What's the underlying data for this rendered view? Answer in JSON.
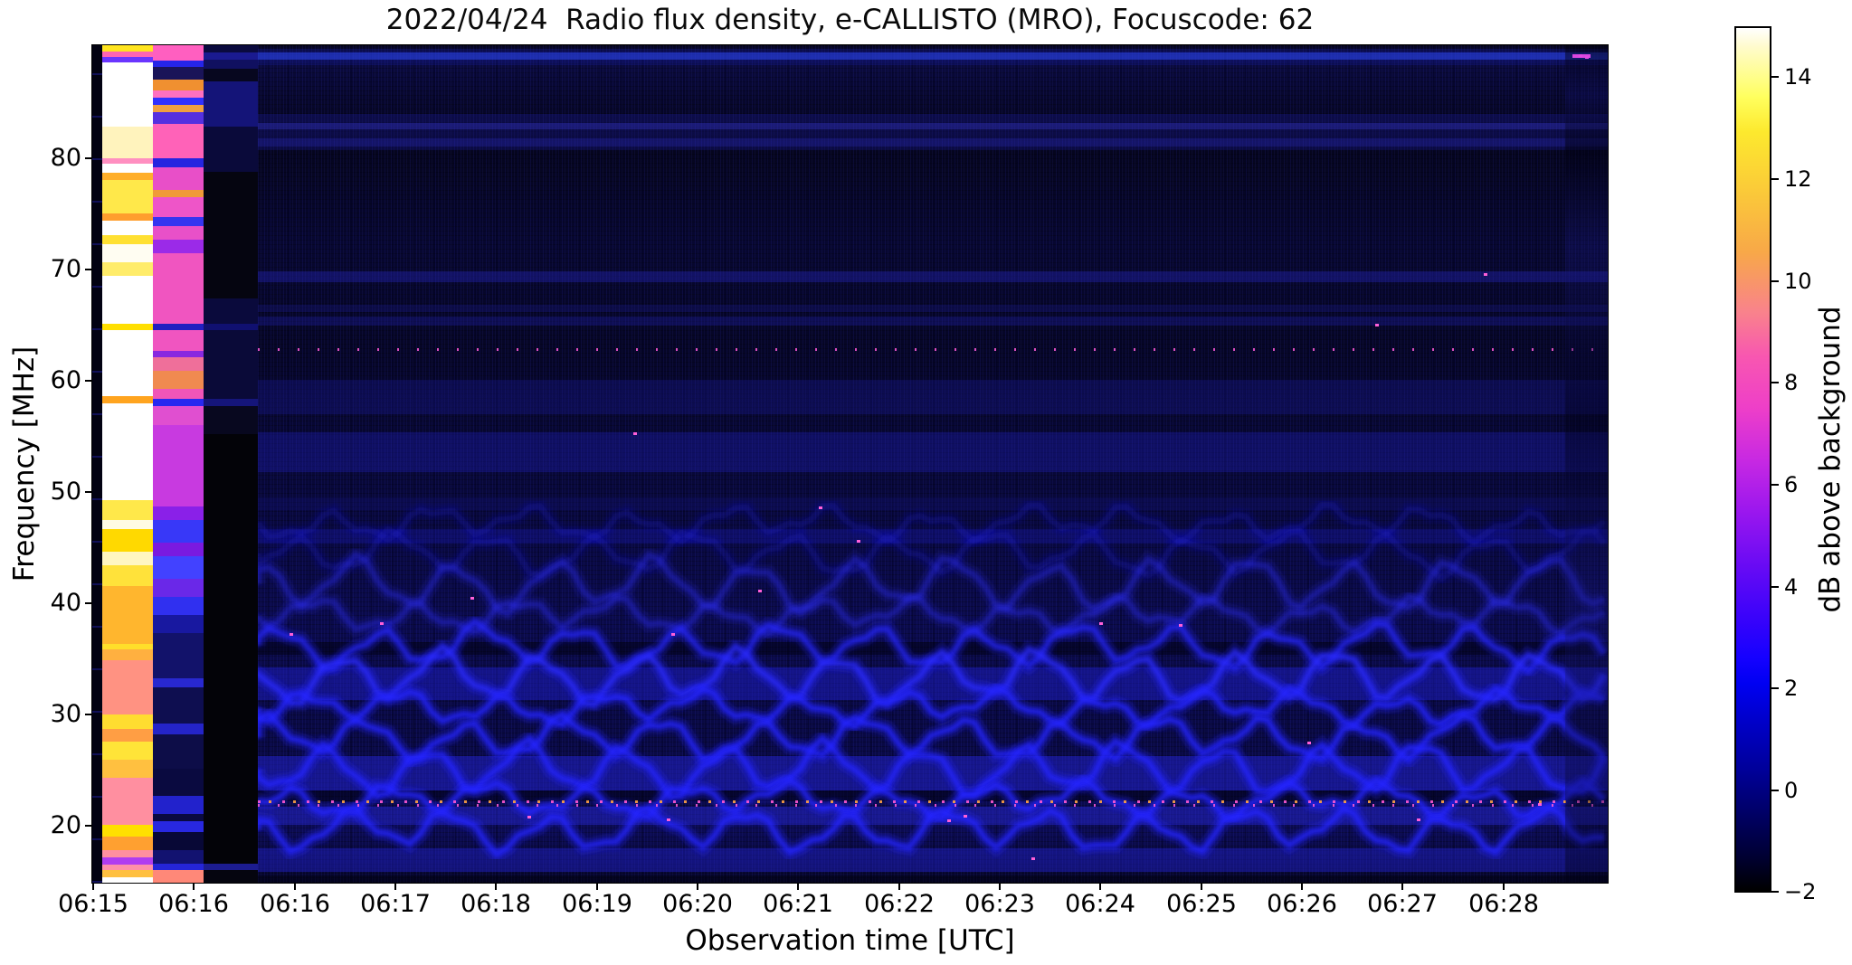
{
  "title": "2022/04/24  Radio flux density, e-CALLISTO (MRO), Focuscode: 62",
  "axes": {
    "x": {
      "label": "Observation time [UTC]",
      "ticks": [
        "06:15",
        "06:16",
        "06:16",
        "06:17",
        "06:18",
        "06:19",
        "06:20",
        "06:21",
        "06:22",
        "06:23",
        "06:24",
        "06:25",
        "06:26",
        "06:27",
        "06:28"
      ]
    },
    "y": {
      "label": "Frequency [MHz]",
      "ticks": [
        "80",
        "70",
        "60",
        "50",
        "40",
        "30",
        "20"
      ]
    },
    "colorbar": {
      "label": "dB above background",
      "ticks": [
        "14",
        "12",
        "10",
        "8",
        "6",
        "4",
        "2",
        "0",
        "−2"
      ]
    }
  },
  "colors": {
    "figure_background": "#ffffff",
    "text": "#000000",
    "wave_blue": "#2626ff",
    "rfi_pink": "#ff5ad8",
    "colormap_top": "#ffffff",
    "colormap_bottom": "#000000"
  },
  "chart_data": {
    "type": "heatmap",
    "title": "2022/04/24  Radio flux density, e-CALLISTO (MRO), Focuscode: 62",
    "xlabel": "Observation time [UTC]",
    "ylabel": "Frequency [MHz]",
    "colorbar_label": "dB above background",
    "x_tick_labels": [
      "06:15",
      "06:16",
      "06:16",
      "06:17",
      "06:18",
      "06:19",
      "06:20",
      "06:21",
      "06:22",
      "06:23",
      "06:24",
      "06:25",
      "06:26",
      "06:27",
      "06:28"
    ],
    "y_tick_values_mhz": [
      80,
      70,
      60,
      50,
      40,
      30,
      20
    ],
    "y_range_mhz": [
      15,
      90
    ],
    "x_range_utc": [
      "06:15",
      "06:29"
    ],
    "colorbar_tick_values": [
      14,
      12,
      10,
      8,
      6,
      4,
      2,
      0,
      -2
    ],
    "colorbar_range_db": [
      -2,
      15
    ],
    "colormap": "gnuplot2-like (black-blue-violet-magenta-pink-orange-yellow-white)",
    "grid": false,
    "legend": "colorbar on right",
    "features": [
      "saturated white/yellow/orange column at far left (~06:15:00-06:15:30), instrument not yet settled",
      "pink/magenta striped column (~06:15:30-06:16:00)",
      "near-black data-gap column (~06:16:00-06:16:30)",
      "broadband dark-blue noise background with horizontal interference bands",
      "bright narrow blue band near 87 MHz across the full duration",
      "dotted narrowband RFI line near 63 MHz",
      "dotted pink/orange narrowband RFI line near 23 MHz",
      "quasi-periodic wavy ionospheric fringes below ~37 MHz with ~1-minute period",
      "disturbed darker vertical strip near the right edge (~06:28:50)",
      "second and third x-axis ticks are both labeled 06:16"
    ]
  }
}
